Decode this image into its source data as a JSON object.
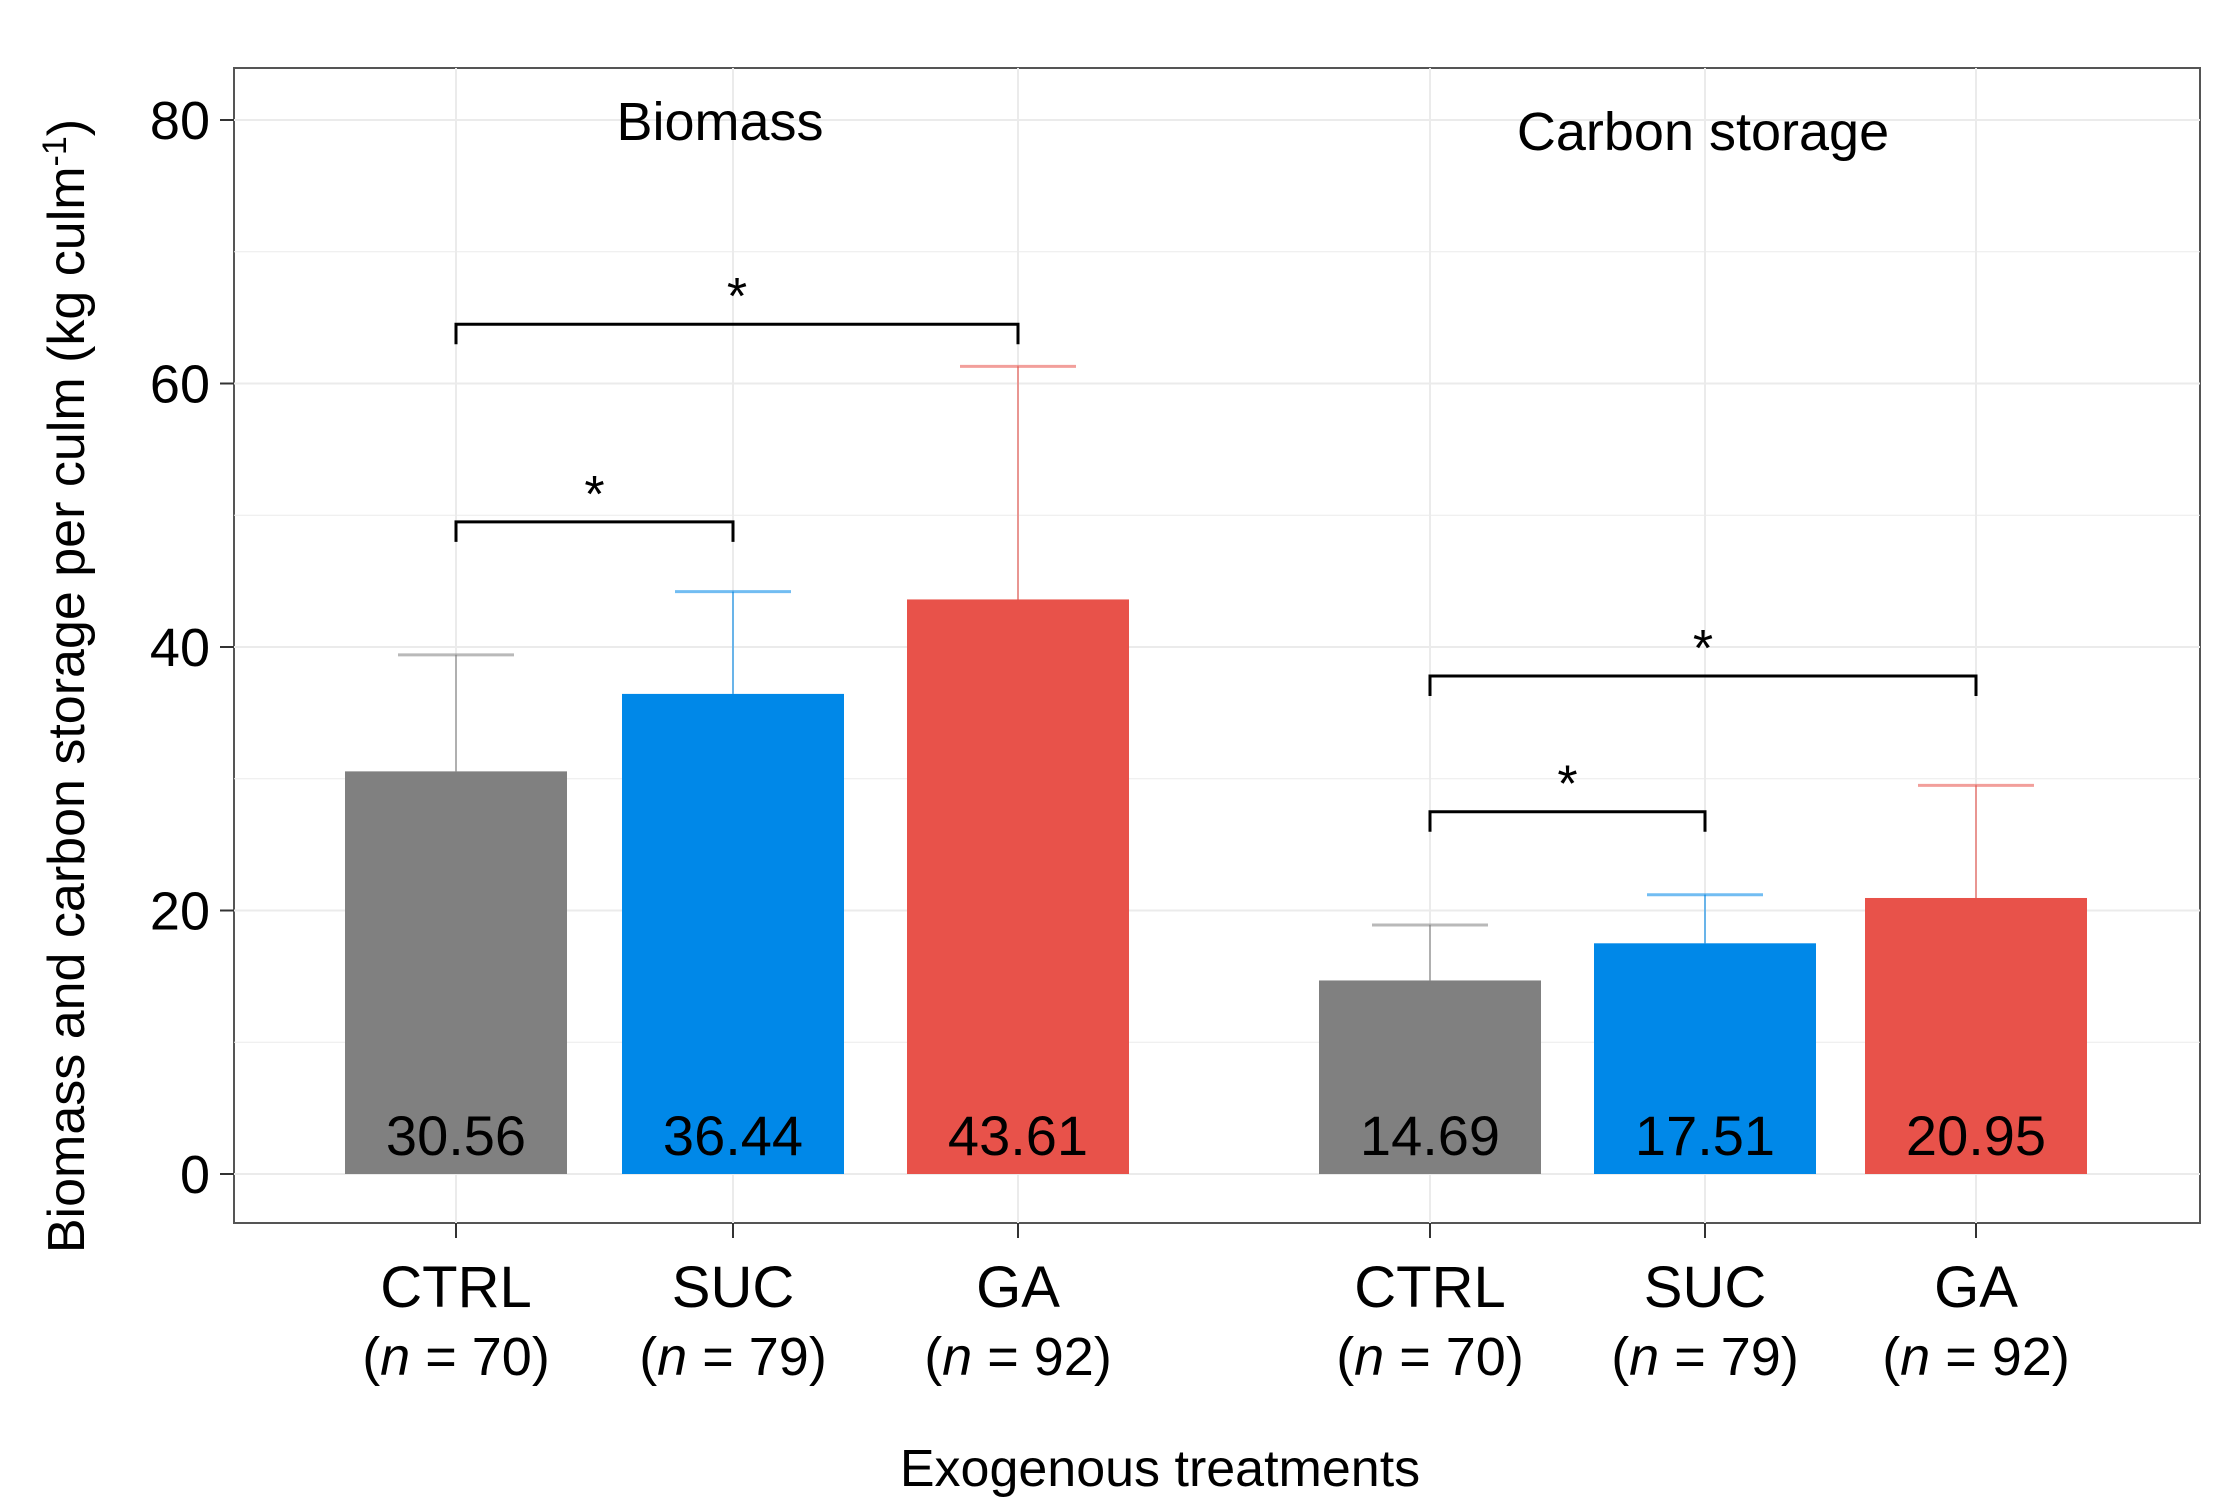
{
  "chart_data": {
    "type": "bar",
    "title": "",
    "xlabel": "Exogenous treatments",
    "ylabel": "Biomass and carbon storage per culm (kg culm",
    "ylabel_sup": "-1",
    "ylabel_close": ")",
    "ylim": [
      0,
      80
    ],
    "yticks": [
      "0",
      "20",
      "40",
      "60",
      "80"
    ],
    "grid": true,
    "colors": {
      "CTRL": "#808080",
      "SUC": "#0088E8",
      "GA": "#E8524A"
    },
    "groups": [
      {
        "name": "Biomass",
        "bars": [
          {
            "category": "CTRL",
            "n_prefix": "(",
            "n_var": "n",
            "n_suffix": " = 70)",
            "value": 30.56,
            "label": "30.56",
            "error_upper": 39.4
          },
          {
            "category": "SUC",
            "n_prefix": "(",
            "n_var": "n",
            "n_suffix": " = 79)",
            "value": 36.44,
            "label": "36.44",
            "error_upper": 44.2
          },
          {
            "category": "GA",
            "n_prefix": "(",
            "n_var": "n",
            "n_suffix": " = 92)",
            "value": 43.61,
            "label": "43.61",
            "error_upper": 61.3
          }
        ],
        "significance": [
          {
            "from": "CTRL",
            "to": "SUC",
            "y": 49.5,
            "label": "*"
          },
          {
            "from": "CTRL",
            "to": "GA",
            "y": 64.5,
            "label": "*"
          }
        ]
      },
      {
        "name": "Carbon storage",
        "bars": [
          {
            "category": "CTRL",
            "n_prefix": "(",
            "n_var": "n",
            "n_suffix": " = 70)",
            "value": 14.69,
            "label": "14.69",
            "error_upper": 18.9
          },
          {
            "category": "SUC",
            "n_prefix": "(",
            "n_var": "n",
            "n_suffix": " = 79)",
            "value": 17.51,
            "label": "17.51",
            "error_upper": 21.2
          },
          {
            "category": "GA",
            "n_prefix": "(",
            "n_var": "n",
            "n_suffix": " = 92)",
            "value": 20.95,
            "label": "20.95",
            "error_upper": 29.5
          }
        ],
        "significance": [
          {
            "from": "CTRL",
            "to": "SUC",
            "y": 27.5,
            "label": "*"
          },
          {
            "from": "CTRL",
            "to": "GA",
            "y": 37.8,
            "label": "*"
          }
        ]
      }
    ]
  }
}
